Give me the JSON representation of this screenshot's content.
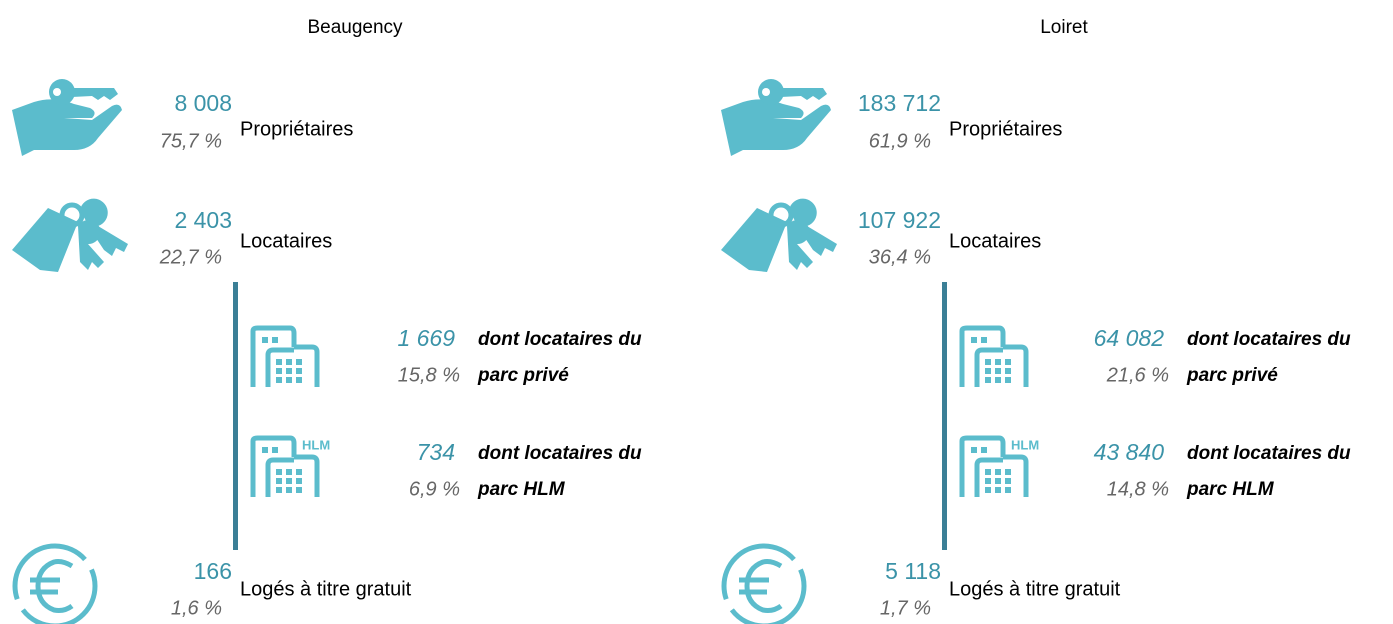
{
  "panels": [
    {
      "title": "Beaugency",
      "owners": {
        "count": "8 008",
        "share": "75,7 %",
        "label": "Propriétaires"
      },
      "tenants": {
        "count": "2 403",
        "share": "22,7 %",
        "label": "Locataires"
      },
      "private": {
        "count": "1 669",
        "share": "15,8 %",
        "label": [
          "dont locataires du",
          "parc privé"
        ]
      },
      "hlm": {
        "icon": "HLM",
        "count": "734",
        "share": "6,9 %",
        "label": [
          "dont locataires du",
          "parc HLM"
        ]
      },
      "free": {
        "count": "166",
        "share": "1,6 %",
        "label": "Logés à titre gratuit"
      }
    },
    {
      "title": "Loiret",
      "owners": {
        "count": "183 712",
        "share": "61,9 %",
        "label": "Propriétaires"
      },
      "tenants": {
        "count": "107 922",
        "share": "36,4 %",
        "label": "Locataires"
      },
      "private": {
        "count": "64 082",
        "share": "21,6 %",
        "label": [
          "dont locataires du",
          "parc privé"
        ]
      },
      "hlm": {
        "icon": "HLM",
        "count": "43 840",
        "share": "14,8 %",
        "label": [
          "dont locataires du",
          "parc HLM"
        ]
      },
      "free": {
        "count": "5 118",
        "share": "1,7 %",
        "label": "Logés à titre gratuit"
      }
    }
  ]
}
